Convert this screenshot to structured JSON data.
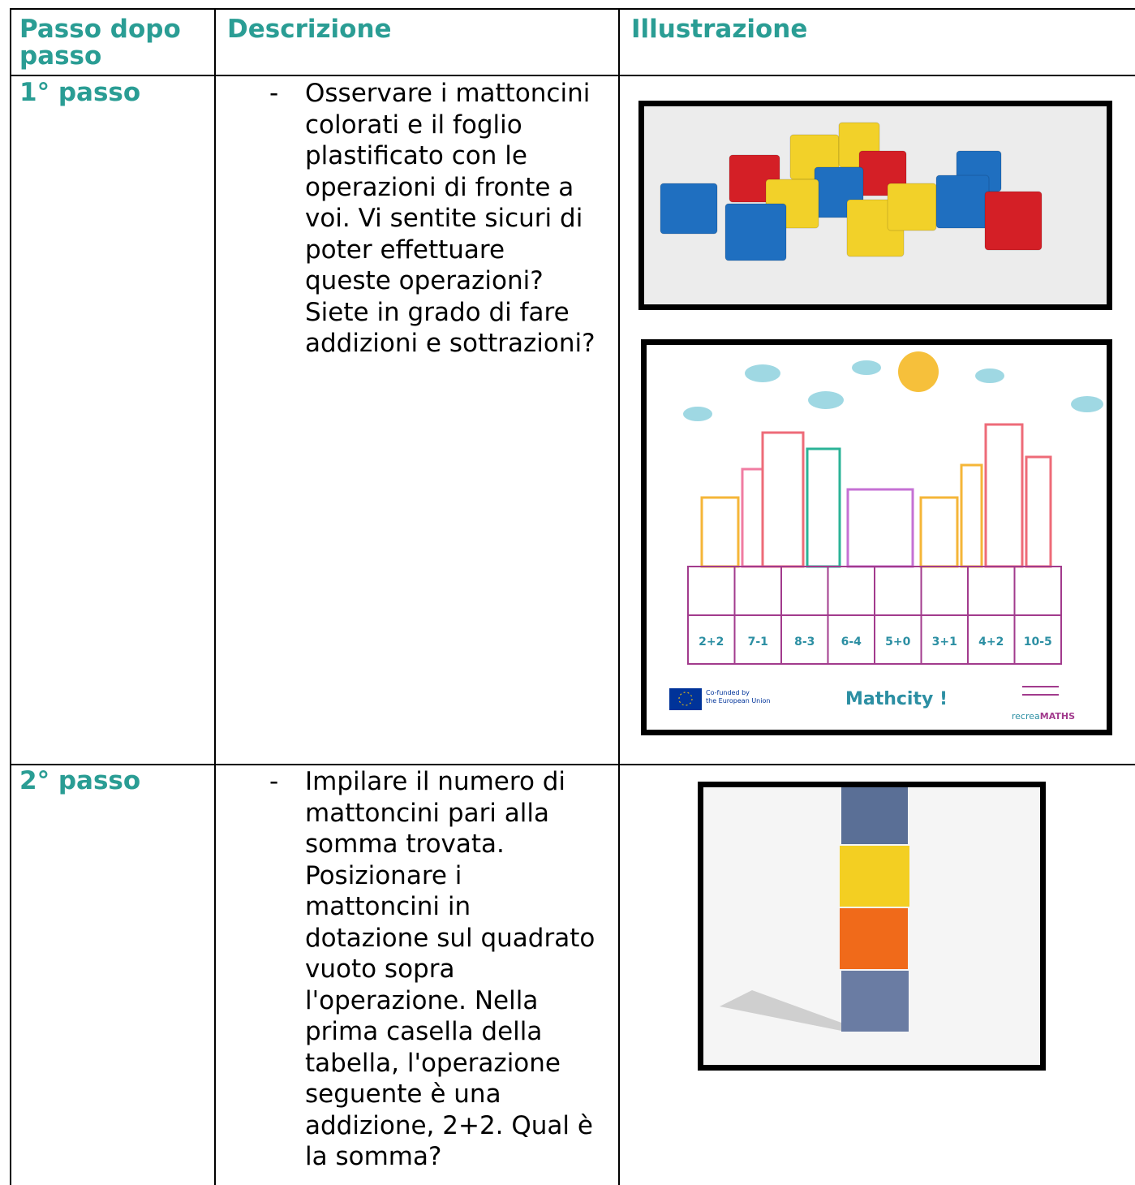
{
  "table": {
    "header": [
      "Passo dopo passo",
      "Descrizione",
      "Illustrazione"
    ],
    "rows": [
      {
        "step": "1° passo",
        "bullet": "-",
        "description": [
          "Osservare i mattoncini",
          "colorati e il foglio",
          "plastificato con le",
          "operazioni di fronte a",
          "voi. Vi sentite sicuri di",
          "poter effettuare",
          "queste operazioni?",
          "Siete in grado di fare",
          "addizioni e sottrazioni?"
        ],
        "poster": {
          "operations": [
            "2+2",
            "7-1",
            "8-3",
            "6-4",
            "5+0",
            "3+1",
            "4+2",
            "10-5"
          ],
          "funding": [
            "Co-funded by",
            "the European Union"
          ],
          "title": "Mathcity !",
          "logo": [
            "recrea",
            "MATHS"
          ]
        }
      },
      {
        "step": "2° passo",
        "bullet": "-",
        "description": [
          "Impilare il numero di",
          "mattoncini pari alla",
          "somma trovata.",
          "Posizionare i",
          "mattoncini in",
          "dotazione sul quadrato",
          "vuoto sopra",
          "l'operazione. Nella",
          "prima casella della",
          "tabella, l'operazione",
          "seguente è una",
          "addizione, 2+2. Qual è",
          "la somma?"
        ]
      }
    ]
  }
}
